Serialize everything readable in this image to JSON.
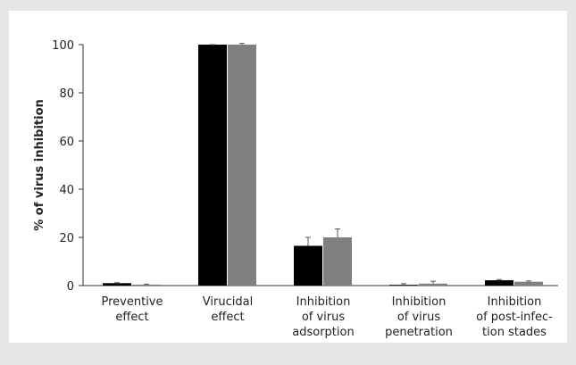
{
  "chart_data": {
    "type": "bar",
    "y_label": "% of virus inhibition",
    "categories": [
      [
        "Preventive",
        "effect"
      ],
      [
        "Virucidal",
        "effect"
      ],
      [
        "Inhibition",
        "of virus",
        "adsorption"
      ],
      [
        "Inhibition",
        "of virus",
        "penetration"
      ],
      [
        "Inhibition",
        "of post-infec-",
        "tion stades"
      ]
    ],
    "series": [
      {
        "color": "#000000",
        "values": [
          1,
          100,
          16.5,
          0.3,
          2.2
        ],
        "errors": [
          0.2,
          0,
          3.5,
          0.5,
          0.3
        ]
      },
      {
        "color": "#808080",
        "values": [
          0.4,
          100,
          20,
          0.8,
          1.6
        ],
        "errors": [
          0.2,
          0.5,
          3.5,
          1,
          0.3
        ]
      }
    ],
    "ylim": [
      0,
      100
    ],
    "yticks": [
      0,
      20,
      40,
      60,
      80,
      100
    ]
  }
}
